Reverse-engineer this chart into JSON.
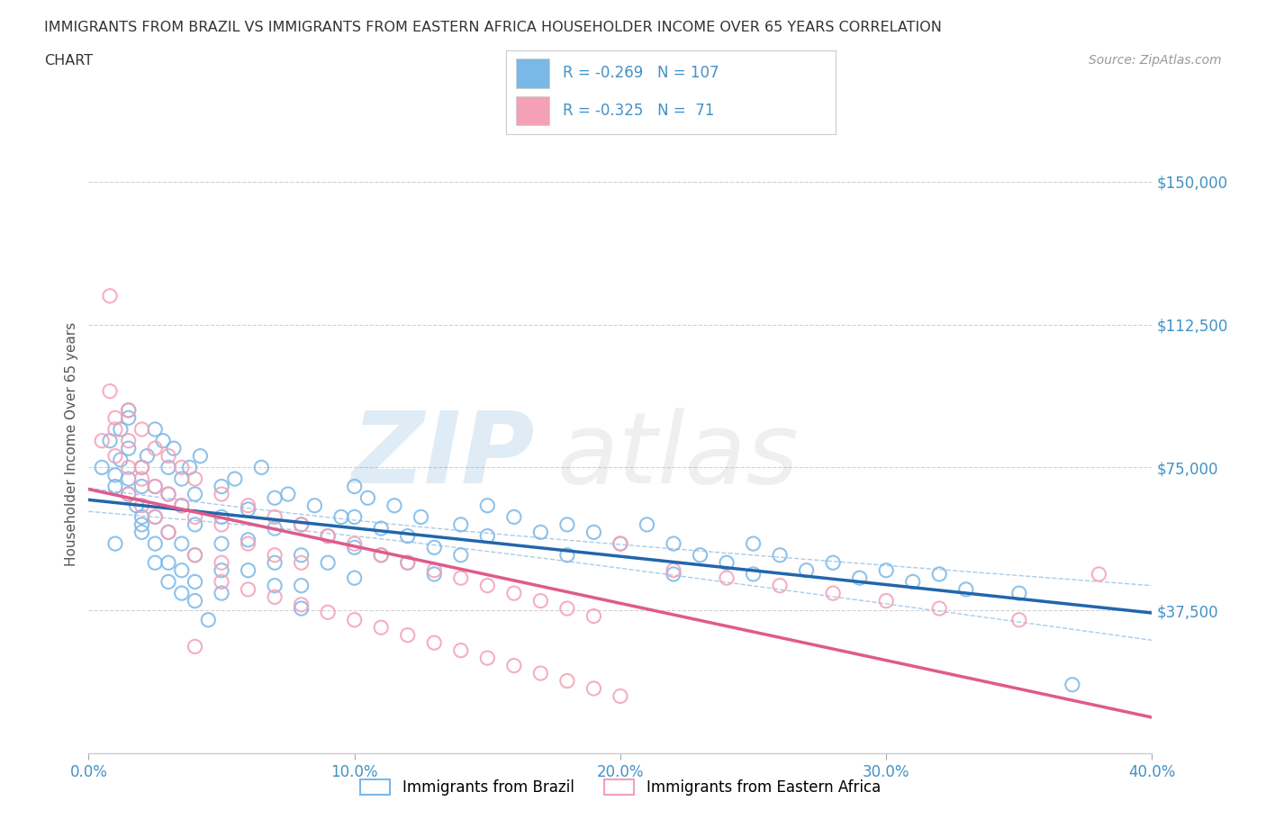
{
  "title_line1": "IMMIGRANTS FROM BRAZIL VS IMMIGRANTS FROM EASTERN AFRICA HOUSEHOLDER INCOME OVER 65 YEARS CORRELATION",
  "title_line2": "CHART",
  "source": "Source: ZipAtlas.com",
  "ylabel": "Householder Income Over 65 years",
  "legend_labels": [
    "Immigrants from Brazil",
    "Immigrants from Eastern Africa"
  ],
  "brazil_R": -0.269,
  "brazil_N": 107,
  "eastafrica_R": -0.325,
  "eastafrica_N": 71,
  "brazil_color": "#7ab8e8",
  "eastafrica_color": "#f4a0b5",
  "brazil_line_color": "#2166ac",
  "eastafrica_line_color": "#e05a8a",
  "ci_color": "#aacbe8",
  "xmin": 0.0,
  "xmax": 0.4,
  "ytick_labels": [
    "$37,500",
    "$75,000",
    "$112,500",
    "$150,000"
  ],
  "ytick_values": [
    37500,
    75000,
    112500,
    150000
  ],
  "ymin": 0,
  "ymax": 162500,
  "xtick_labels": [
    "0.0%",
    "10.0%",
    "20.0%",
    "30.0%",
    "40.0%"
  ],
  "xtick_values": [
    0.0,
    0.1,
    0.2,
    0.3,
    0.4
  ],
  "brazil_x": [
    0.005,
    0.008,
    0.01,
    0.01,
    0.01,
    0.012,
    0.012,
    0.015,
    0.015,
    0.015,
    0.015,
    0.015,
    0.018,
    0.02,
    0.02,
    0.02,
    0.02,
    0.02,
    0.022,
    0.025,
    0.025,
    0.025,
    0.025,
    0.025,
    0.028,
    0.03,
    0.03,
    0.03,
    0.03,
    0.03,
    0.032,
    0.035,
    0.035,
    0.035,
    0.035,
    0.035,
    0.038,
    0.04,
    0.04,
    0.04,
    0.04,
    0.04,
    0.042,
    0.045,
    0.05,
    0.05,
    0.05,
    0.05,
    0.05,
    0.055,
    0.06,
    0.06,
    0.06,
    0.065,
    0.07,
    0.07,
    0.07,
    0.07,
    0.075,
    0.08,
    0.08,
    0.08,
    0.08,
    0.085,
    0.09,
    0.09,
    0.095,
    0.1,
    0.1,
    0.1,
    0.1,
    0.105,
    0.11,
    0.11,
    0.115,
    0.12,
    0.12,
    0.125,
    0.13,
    0.13,
    0.14,
    0.14,
    0.15,
    0.15,
    0.16,
    0.17,
    0.18,
    0.18,
    0.19,
    0.2,
    0.21,
    0.22,
    0.22,
    0.23,
    0.24,
    0.25,
    0.25,
    0.26,
    0.27,
    0.28,
    0.29,
    0.3,
    0.31,
    0.32,
    0.33,
    0.35,
    0.37
  ],
  "brazil_y": [
    75000,
    82000,
    70000,
    55000,
    73000,
    85000,
    77000,
    68000,
    90000,
    72000,
    88000,
    80000,
    65000,
    75000,
    60000,
    70000,
    62000,
    58000,
    78000,
    70000,
    85000,
    62000,
    55000,
    50000,
    82000,
    75000,
    68000,
    58000,
    50000,
    45000,
    80000,
    72000,
    65000,
    55000,
    48000,
    42000,
    75000,
    68000,
    60000,
    52000,
    45000,
    40000,
    78000,
    35000,
    70000,
    62000,
    55000,
    48000,
    42000,
    72000,
    64000,
    56000,
    48000,
    75000,
    67000,
    59000,
    50000,
    44000,
    68000,
    60000,
    52000,
    44000,
    38000,
    65000,
    57000,
    50000,
    62000,
    70000,
    62000,
    54000,
    46000,
    67000,
    59000,
    52000,
    65000,
    57000,
    50000,
    62000,
    54000,
    47000,
    60000,
    52000,
    65000,
    57000,
    62000,
    58000,
    60000,
    52000,
    58000,
    55000,
    60000,
    55000,
    47000,
    52000,
    50000,
    55000,
    47000,
    52000,
    48000,
    50000,
    46000,
    48000,
    45000,
    47000,
    43000,
    42000,
    18000
  ],
  "eastafrica_x": [
    0.005,
    0.008,
    0.008,
    0.01,
    0.01,
    0.015,
    0.015,
    0.015,
    0.015,
    0.02,
    0.02,
    0.02,
    0.025,
    0.025,
    0.025,
    0.03,
    0.03,
    0.03,
    0.035,
    0.035,
    0.04,
    0.04,
    0.04,
    0.05,
    0.05,
    0.05,
    0.06,
    0.06,
    0.07,
    0.07,
    0.08,
    0.08,
    0.09,
    0.1,
    0.11,
    0.12,
    0.13,
    0.14,
    0.15,
    0.16,
    0.17,
    0.18,
    0.19,
    0.2,
    0.22,
    0.24,
    0.26,
    0.28,
    0.3,
    0.32,
    0.35,
    0.38,
    0.04,
    0.05,
    0.06,
    0.07,
    0.08,
    0.09,
    0.1,
    0.11,
    0.12,
    0.13,
    0.14,
    0.15,
    0.16,
    0.17,
    0.18,
    0.19,
    0.2,
    0.01,
    0.02
  ],
  "eastafrica_y": [
    82000,
    120000,
    95000,
    78000,
    85000,
    90000,
    75000,
    82000,
    68000,
    85000,
    72000,
    65000,
    80000,
    70000,
    62000,
    78000,
    68000,
    58000,
    75000,
    65000,
    72000,
    62000,
    52000,
    68000,
    60000,
    50000,
    65000,
    55000,
    62000,
    52000,
    60000,
    50000,
    57000,
    55000,
    52000,
    50000,
    48000,
    46000,
    44000,
    42000,
    40000,
    38000,
    36000,
    55000,
    48000,
    46000,
    44000,
    42000,
    40000,
    38000,
    35000,
    47000,
    28000,
    45000,
    43000,
    41000,
    39000,
    37000,
    35000,
    33000,
    31000,
    29000,
    27000,
    25000,
    23000,
    21000,
    19000,
    17000,
    15000,
    88000,
    75000
  ],
  "background_color": "#ffffff",
  "grid_color": "#cccccc",
  "title_color": "#333333",
  "axis_color": "#4292c6"
}
